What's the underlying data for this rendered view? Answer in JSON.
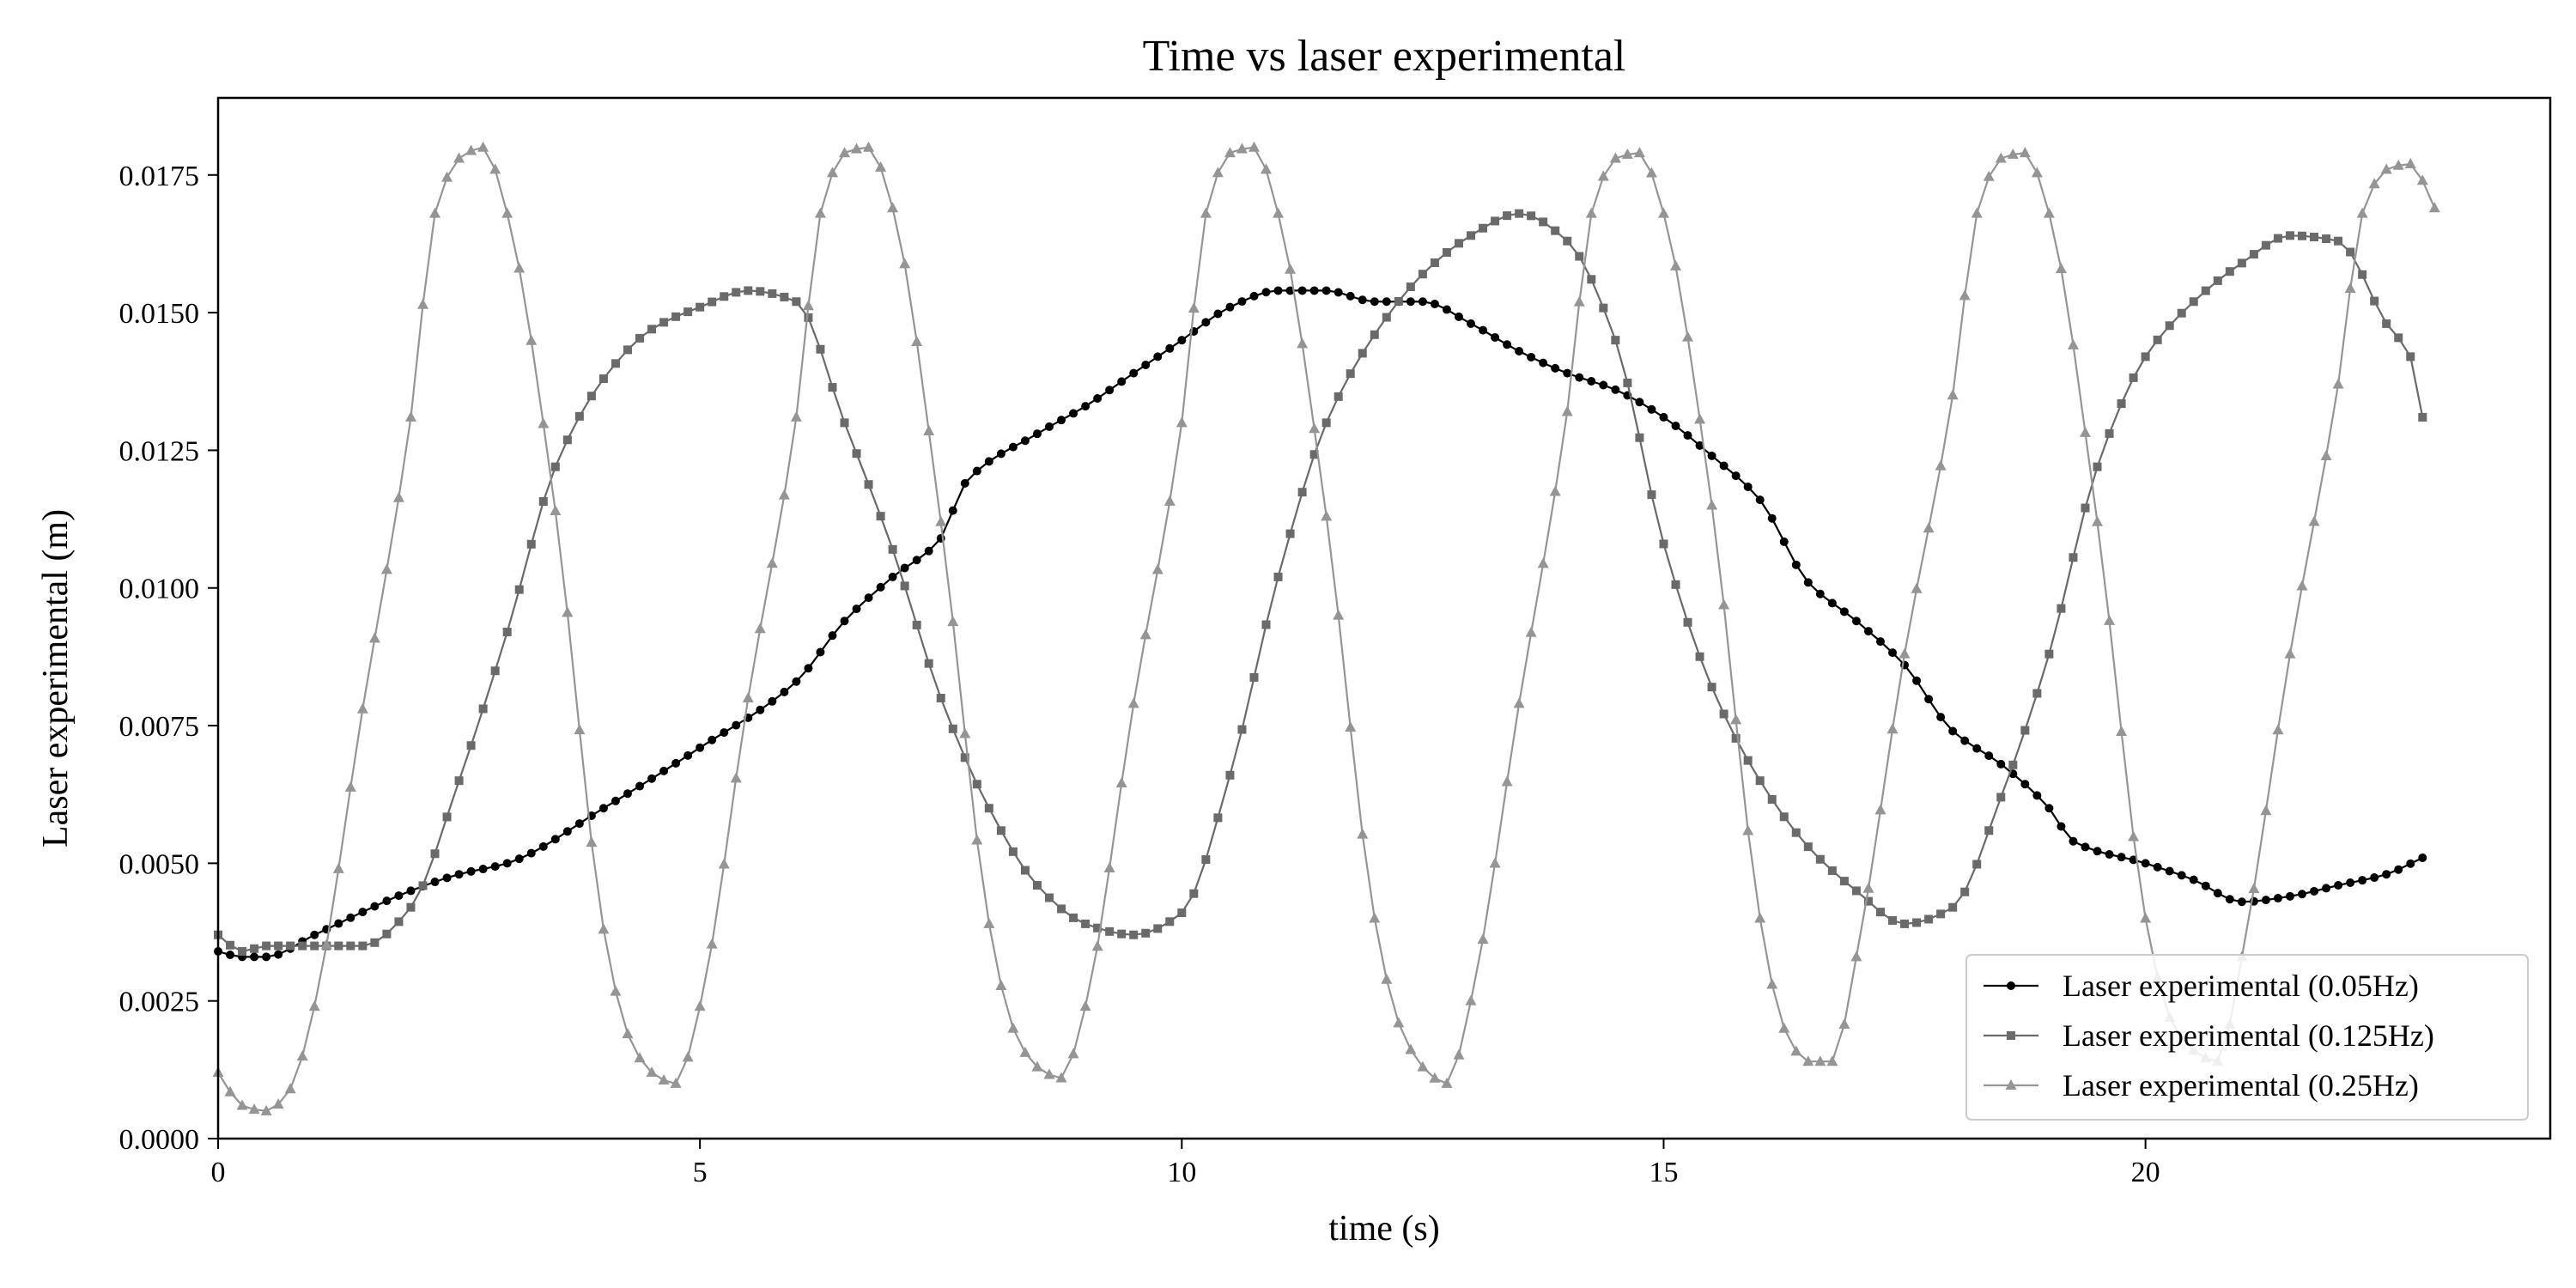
{
  "chart_data": {
    "type": "line",
    "title": "Time vs laser experimental",
    "xlabel": "time (s)",
    "ylabel": "Laser experimental (m)",
    "xlim": [
      0,
      24.2
    ],
    "ylim": [
      0,
      0.0189
    ],
    "xticks": [
      0,
      5,
      10,
      15,
      20
    ],
    "xtick_labels": [
      "0",
      "5",
      "10",
      "15",
      "20"
    ],
    "yticks": [
      0,
      0.0025,
      0.005,
      0.0075,
      0.01,
      0.0125,
      0.015,
      0.0175
    ],
    "ytick_labels": [
      "0.0000",
      "0.0025",
      "0.0050",
      "0.0075",
      "0.0100",
      "0.0125",
      "0.0150",
      "0.0175"
    ],
    "grid": false,
    "legend_position": "lower-right",
    "x_step": 0.125,
    "series": [
      {
        "name": "Laser experimental (0.05Hz)",
        "color": "#000000",
        "marker": "circle",
        "x_end": 22.875,
        "anchors": [
          [
            0,
            0.0034
          ],
          [
            0.25,
            0.0033
          ],
          [
            0.5,
            0.0033
          ],
          [
            1,
            0.0037
          ],
          [
            2,
            0.0045
          ],
          [
            2.5,
            0.0048
          ],
          [
            3,
            0.005
          ],
          [
            4,
            0.006
          ],
          [
            5,
            0.0071
          ],
          [
            6,
            0.0083
          ],
          [
            6.5,
            0.0094
          ],
          [
            7,
            0.0102
          ],
          [
            7.5,
            0.0109
          ],
          [
            7.75,
            0.0119
          ],
          [
            8.5,
            0.0128
          ],
          [
            9,
            0.0133
          ],
          [
            9.5,
            0.0139
          ],
          [
            10,
            0.0145
          ],
          [
            10.5,
            0.0151
          ],
          [
            11,
            0.0154
          ],
          [
            11.5,
            0.0154
          ],
          [
            12,
            0.0152
          ],
          [
            12.5,
            0.0152
          ],
          [
            13,
            0.0148
          ],
          [
            13.5,
            0.0143
          ],
          [
            14,
            0.0139
          ],
          [
            14.5,
            0.0136
          ],
          [
            15,
            0.0131
          ],
          [
            15.5,
            0.0124
          ],
          [
            16,
            0.0116
          ],
          [
            16.5,
            0.0101
          ],
          [
            17,
            0.0094
          ],
          [
            17.5,
            0.0086
          ],
          [
            18,
            0.0074
          ],
          [
            18.5,
            0.0068
          ],
          [
            19,
            0.006
          ],
          [
            19.25,
            0.0054
          ],
          [
            20,
            0.005
          ],
          [
            20.5,
            0.0047
          ],
          [
            21,
            0.0043
          ],
          [
            21.5,
            0.0044
          ],
          [
            22,
            0.0046
          ],
          [
            22.5,
            0.0048
          ],
          [
            22.875,
            0.0051
          ]
        ]
      },
      {
        "name": "Laser experimental (0.125Hz)",
        "color": "#6a6a6a",
        "marker": "square",
        "x_end": 22.875,
        "anchors": [
          [
            0,
            0.0037
          ],
          [
            0.25,
            0.0034
          ],
          [
            0.5,
            0.0035
          ],
          [
            1,
            0.0035
          ],
          [
            1.5,
            0.0035
          ],
          [
            2,
            0.0042
          ],
          [
            2.5,
            0.0065
          ],
          [
            3,
            0.0092
          ],
          [
            3.5,
            0.0122
          ],
          [
            4,
            0.0138
          ],
          [
            4.5,
            0.0147
          ],
          [
            5,
            0.0151
          ],
          [
            5.5,
            0.0154
          ],
          [
            6,
            0.0152
          ],
          [
            6.5,
            0.013
          ],
          [
            7,
            0.0107
          ],
          [
            7.5,
            0.008
          ],
          [
            8,
            0.006
          ],
          [
            8.5,
            0.0046
          ],
          [
            9,
            0.0039
          ],
          [
            9.5,
            0.0037
          ],
          [
            10,
            0.0041
          ],
          [
            10.5,
            0.0066
          ],
          [
            11,
            0.0102
          ],
          [
            11.5,
            0.013
          ],
          [
            12,
            0.0146
          ],
          [
            12.5,
            0.0157
          ],
          [
            13,
            0.0164
          ],
          [
            13.5,
            0.0168
          ],
          [
            14,
            0.0163
          ],
          [
            14.5,
            0.0145
          ],
          [
            15,
            0.0108
          ],
          [
            15.5,
            0.0082
          ],
          [
            16,
            0.0065
          ],
          [
            16.5,
            0.0053
          ],
          [
            17,
            0.0045
          ],
          [
            17.5,
            0.0039
          ],
          [
            18,
            0.0042
          ],
          [
            18.5,
            0.0062
          ],
          [
            19,
            0.0088
          ],
          [
            19.5,
            0.0122
          ],
          [
            20,
            0.0142
          ],
          [
            20.5,
            0.0152
          ],
          [
            21,
            0.0159
          ],
          [
            21.5,
            0.0164
          ],
          [
            22,
            0.0163
          ],
          [
            22.5,
            0.0148
          ],
          [
            22.75,
            0.0142
          ],
          [
            22.875,
            0.0131
          ]
        ]
      },
      {
        "name": "Laser experimental (0.25Hz)",
        "color": "#959595",
        "marker": "triangle",
        "x_end": 23,
        "anchors": [
          [
            0,
            0.0012
          ],
          [
            0.25,
            0.0006
          ],
          [
            0.5,
            0.0005
          ],
          [
            0.75,
            0.0009
          ],
          [
            1,
            0.0024
          ],
          [
            1.5,
            0.0078
          ],
          [
            2,
            0.0131
          ],
          [
            2.25,
            0.0168
          ],
          [
            2.5,
            0.0178
          ],
          [
            2.75,
            0.018
          ],
          [
            3,
            0.0168
          ],
          [
            3.5,
            0.0114
          ],
          [
            4,
            0.0038
          ],
          [
            4.25,
            0.0019
          ],
          [
            4.5,
            0.0012
          ],
          [
            4.75,
            0.001
          ],
          [
            5,
            0.0024
          ],
          [
            5.5,
            0.008
          ],
          [
            6,
            0.0131
          ],
          [
            6.25,
            0.0168
          ],
          [
            6.5,
            0.0179
          ],
          [
            6.75,
            0.018
          ],
          [
            7,
            0.0169
          ],
          [
            7.5,
            0.0112
          ],
          [
            8,
            0.0039
          ],
          [
            8.25,
            0.002
          ],
          [
            8.5,
            0.0013
          ],
          [
            8.75,
            0.0011
          ],
          [
            9,
            0.0024
          ],
          [
            9.5,
            0.0079
          ],
          [
            10,
            0.013
          ],
          [
            10.25,
            0.0168
          ],
          [
            10.5,
            0.0179
          ],
          [
            10.75,
            0.018
          ],
          [
            11,
            0.0168
          ],
          [
            11.5,
            0.0113
          ],
          [
            12,
            0.004
          ],
          [
            12.25,
            0.0021
          ],
          [
            12.5,
            0.0013
          ],
          [
            12.75,
            0.001
          ],
          [
            13,
            0.0025
          ],
          [
            13.5,
            0.0079
          ],
          [
            14,
            0.0132
          ],
          [
            14.25,
            0.0168
          ],
          [
            14.5,
            0.0178
          ],
          [
            14.75,
            0.0179
          ],
          [
            15,
            0.0168
          ],
          [
            15.5,
            0.0115
          ],
          [
            16,
            0.004
          ],
          [
            16.25,
            0.002
          ],
          [
            16.5,
            0.0014
          ],
          [
            16.75,
            0.0014
          ],
          [
            17,
            0.0033
          ],
          [
            17.5,
            0.0088
          ],
          [
            18,
            0.0135
          ],
          [
            18.25,
            0.0168
          ],
          [
            18.5,
            0.0178
          ],
          [
            18.75,
            0.0179
          ],
          [
            19,
            0.0168
          ],
          [
            19.5,
            0.0112
          ],
          [
            20,
            0.004
          ],
          [
            20.25,
            0.0022
          ],
          [
            20.5,
            0.0016
          ],
          [
            20.75,
            0.0014
          ],
          [
            21,
            0.0033
          ],
          [
            21.5,
            0.0088
          ],
          [
            22,
            0.0137
          ],
          [
            22.25,
            0.0168
          ],
          [
            22.5,
            0.0176
          ],
          [
            22.75,
            0.0177
          ],
          [
            23,
            0.0169
          ]
        ]
      }
    ]
  }
}
